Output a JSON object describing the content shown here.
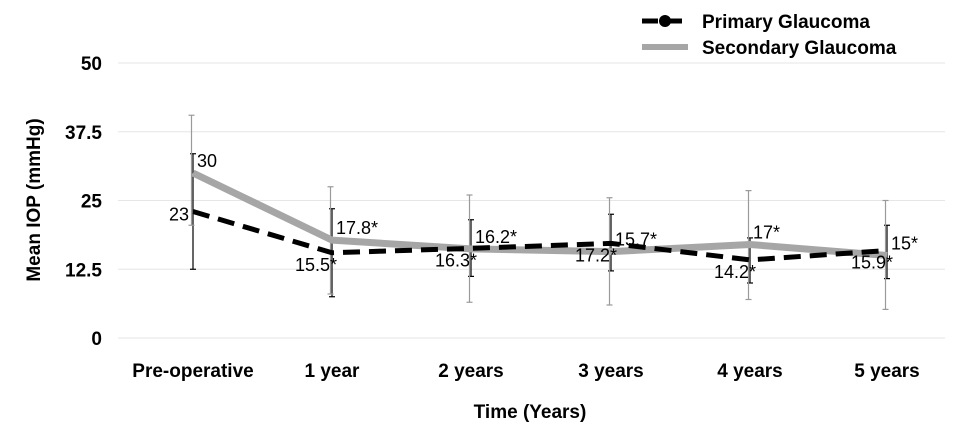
{
  "chart_data": {
    "type": "line",
    "title": "",
    "xlabel": "Time (Years)",
    "ylabel": "Mean IOP (mmHg)",
    "ylim": [
      0,
      50
    ],
    "yticks": [
      "0",
      "12.5",
      "25",
      "37.5",
      "50"
    ],
    "categories": [
      "Pre-operative",
      "1 year",
      "2 years",
      "3 years",
      "4 years",
      "5 years"
    ],
    "grid": true,
    "legend_position": "top-right",
    "series": [
      {
        "name": "Primary Glaucoma",
        "style": "dashed",
        "color": "#000000",
        "values": [
          23,
          15.5,
          16.3,
          17.2,
          14.2,
          15.9
        ],
        "labels": [
          "23",
          "15.5*",
          "16.3*",
          "17.2*",
          "14.2*",
          "15.9*"
        ],
        "error_low": [
          12.5,
          7.5,
          11.2,
          12.2,
          10.0,
          10.8
        ],
        "error_high": [
          33.5,
          23.5,
          21.5,
          22.5,
          18.2,
          20.5
        ]
      },
      {
        "name": "Secondary Glaucoma",
        "style": "solid",
        "color": "#a6a6a6",
        "values": [
          30,
          17.8,
          16.2,
          15.7,
          17,
          15
        ],
        "labels": [
          "30",
          "17.8*",
          "16.2*",
          "15.7*",
          "17*",
          "15*"
        ],
        "error_low": [
          20.5,
          8.0,
          6.5,
          6.0,
          7.0,
          5.2
        ],
        "error_high": [
          40.5,
          27.5,
          26.0,
          25.5,
          26.8,
          25.0
        ]
      }
    ]
  }
}
